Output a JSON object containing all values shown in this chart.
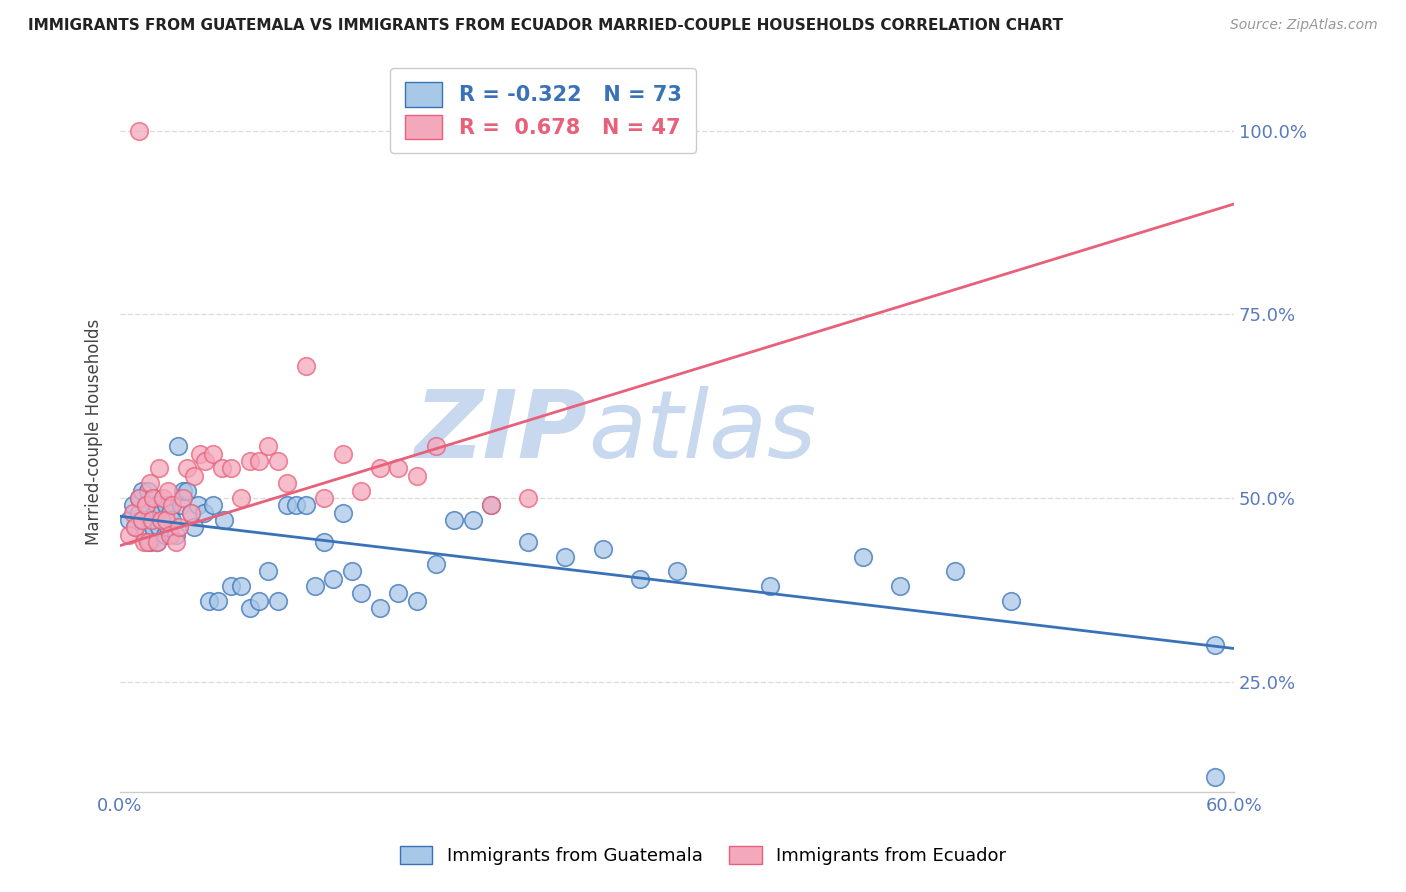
{
  "title": "IMMIGRANTS FROM GUATEMALA VS IMMIGRANTS FROM ECUADOR MARRIED-COUPLE HOUSEHOLDS CORRELATION CHART",
  "source": "Source: ZipAtlas.com",
  "ylabel": "Married-couple Households",
  "xlim": [
    0.0,
    0.6
  ],
  "ylim": [
    0.1,
    1.08
  ],
  "yticks": [
    0.25,
    0.5,
    0.75,
    1.0
  ],
  "ytick_labels": [
    "25.0%",
    "50.0%",
    "75.0%",
    "100.0%"
  ],
  "blue_R": -0.322,
  "blue_N": 73,
  "pink_R": 0.678,
  "pink_N": 47,
  "blue_label": "Immigrants from Guatemala",
  "pink_label": "Immigrants from Ecuador",
  "blue_color": "#a8c8e8",
  "pink_color": "#f4a8bc",
  "blue_line_color": "#3a72b8",
  "pink_line_color": "#e8607a",
  "title_color": "#222222",
  "axis_color": "#5a7abf",
  "watermark": "ZIPatlas",
  "watermark_color": "#d0dff0",
  "background_color": "#ffffff",
  "grid_color": "#dddddd",
  "blue_trend_x0": 0.0,
  "blue_trend_y0": 0.475,
  "blue_trend_x1": 0.6,
  "blue_trend_y1": 0.295,
  "pink_trend_x0": 0.0,
  "pink_trend_y0": 0.435,
  "pink_trend_x1": 0.6,
  "pink_trend_y1": 0.9,
  "blue_x": [
    0.005,
    0.007,
    0.008,
    0.01,
    0.01,
    0.012,
    0.012,
    0.013,
    0.014,
    0.015,
    0.015,
    0.016,
    0.017,
    0.018,
    0.018,
    0.019,
    0.02,
    0.02,
    0.021,
    0.022,
    0.023,
    0.024,
    0.025,
    0.026,
    0.027,
    0.028,
    0.03,
    0.031,
    0.033,
    0.034,
    0.036,
    0.038,
    0.04,
    0.042,
    0.045,
    0.048,
    0.05,
    0.053,
    0.056,
    0.06,
    0.065,
    0.07,
    0.075,
    0.08,
    0.085,
    0.09,
    0.095,
    0.1,
    0.105,
    0.11,
    0.115,
    0.12,
    0.125,
    0.13,
    0.14,
    0.15,
    0.16,
    0.17,
    0.18,
    0.19,
    0.2,
    0.22,
    0.24,
    0.26,
    0.28,
    0.3,
    0.35,
    0.4,
    0.42,
    0.45,
    0.48,
    0.59,
    0.59
  ],
  "blue_y": [
    0.47,
    0.49,
    0.46,
    0.48,
    0.5,
    0.47,
    0.51,
    0.45,
    0.49,
    0.47,
    0.51,
    0.44,
    0.47,
    0.46,
    0.5,
    0.48,
    0.44,
    0.49,
    0.46,
    0.48,
    0.47,
    0.45,
    0.49,
    0.46,
    0.48,
    0.47,
    0.45,
    0.57,
    0.49,
    0.51,
    0.51,
    0.48,
    0.46,
    0.49,
    0.48,
    0.36,
    0.49,
    0.36,
    0.47,
    0.38,
    0.38,
    0.35,
    0.36,
    0.4,
    0.36,
    0.49,
    0.49,
    0.49,
    0.38,
    0.44,
    0.39,
    0.48,
    0.4,
    0.37,
    0.35,
    0.37,
    0.36,
    0.41,
    0.47,
    0.47,
    0.49,
    0.44,
    0.42,
    0.43,
    0.39,
    0.4,
    0.38,
    0.42,
    0.38,
    0.4,
    0.36,
    0.3,
    0.12
  ],
  "pink_x": [
    0.005,
    0.007,
    0.008,
    0.01,
    0.012,
    0.013,
    0.014,
    0.015,
    0.016,
    0.017,
    0.018,
    0.02,
    0.021,
    0.022,
    0.023,
    0.025,
    0.026,
    0.027,
    0.028,
    0.03,
    0.032,
    0.034,
    0.036,
    0.038,
    0.04,
    0.043,
    0.046,
    0.05,
    0.055,
    0.06,
    0.065,
    0.07,
    0.075,
    0.08,
    0.085,
    0.09,
    0.1,
    0.11,
    0.12,
    0.13,
    0.14,
    0.15,
    0.16,
    0.17,
    0.2,
    0.22,
    0.01
  ],
  "pink_y": [
    0.45,
    0.48,
    0.46,
    0.5,
    0.47,
    0.44,
    0.49,
    0.44,
    0.52,
    0.47,
    0.5,
    0.44,
    0.54,
    0.47,
    0.5,
    0.47,
    0.51,
    0.45,
    0.49,
    0.44,
    0.46,
    0.5,
    0.54,
    0.48,
    0.53,
    0.56,
    0.55,
    0.56,
    0.54,
    0.54,
    0.5,
    0.55,
    0.55,
    0.57,
    0.55,
    0.52,
    0.68,
    0.5,
    0.56,
    0.51,
    0.54,
    0.54,
    0.53,
    0.57,
    0.49,
    0.5,
    1.0
  ]
}
